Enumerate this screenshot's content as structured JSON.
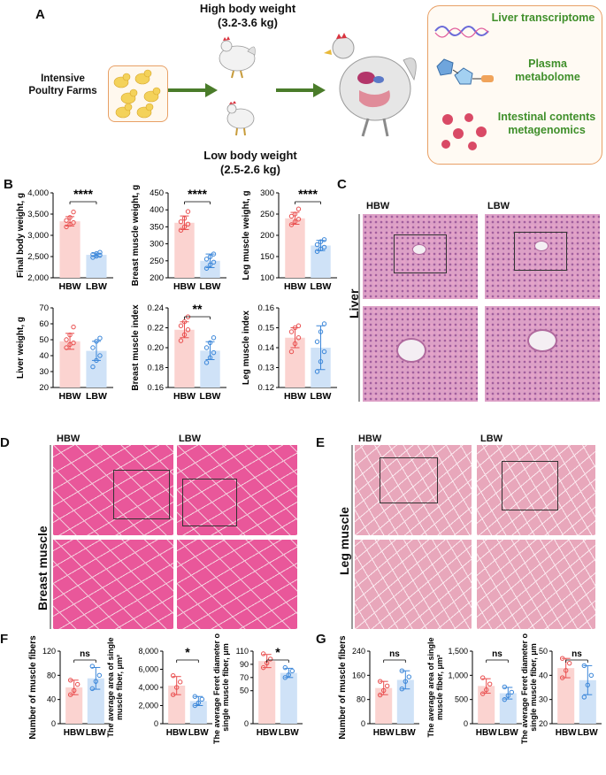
{
  "panel_labels": {
    "a": "A",
    "b": "B",
    "c": "C",
    "d": "D",
    "e": "E",
    "f": "F",
    "g": "G"
  },
  "panel_a": {
    "farm_label": "Intensive Poultry Farms",
    "high_title": "High body weight",
    "high_range": "(3.2-3.6 kg)",
    "low_title": "Low body weight",
    "low_range": "(2.5-2.6 kg)",
    "omics": [
      "Liver transcriptome",
      "Plasma metabolome",
      "Intestinal contents metagenomics"
    ],
    "colors": {
      "arrow": "#4a7c2a",
      "omics_text": "#3f8f2a",
      "box_border": "#e8a066"
    }
  },
  "groups": {
    "hbw": "HBW",
    "lbw": "LBW"
  },
  "histology": {
    "liver_label": "Liver",
    "breast_label": "Breast muscle",
    "leg_label": "Leg muscle"
  },
  "colors": {
    "hbw_fill": "#fbd3d0",
    "hbw_point": "#e94f4f",
    "lbw_fill": "#cfe2f7",
    "lbw_point": "#3a86d9"
  },
  "chart_data": [
    {
      "id": "final_bw",
      "type": "bar",
      "ylabel": "Final body weight, g",
      "ylim": [
        2000,
        4000
      ],
      "yticks": [
        "2,000",
        "2,500",
        "3,000",
        "3,500",
        "4,000"
      ],
      "tickvals": [
        2000,
        2500,
        3000,
        3500,
        4000
      ],
      "categories": [
        "HBW",
        "LBW"
      ],
      "values": [
        3330,
        2540
      ],
      "errors": [
        110,
        40
      ],
      "points": [
        [
          3200,
          3260,
          3300,
          3350,
          3420,
          3550
        ],
        [
          2480,
          2510,
          2530,
          2550,
          2570,
          2600
        ]
      ],
      "sig": "****"
    },
    {
      "id": "breast_w",
      "type": "bar",
      "ylabel": "Breast muscle weight, g",
      "ylim": [
        200,
        450
      ],
      "yticks": [
        "200",
        "250",
        "300",
        "350",
        "400",
        "450"
      ],
      "tickvals": [
        200,
        250,
        300,
        350,
        400,
        450
      ],
      "categories": [
        "HBW",
        "LBW"
      ],
      "values": [
        362,
        250
      ],
      "errors": [
        20,
        20
      ],
      "points": [
        [
          340,
          350,
          358,
          365,
          375,
          395
        ],
        [
          228,
          238,
          246,
          255,
          262,
          270
        ]
      ],
      "sig": "****"
    },
    {
      "id": "leg_w",
      "type": "bar",
      "ylabel": "Leg muscle weight, g",
      "ylim": [
        100,
        300
      ],
      "yticks": [
        "100",
        "150",
        "200",
        "250",
        "300"
      ],
      "tickvals": [
        100,
        150,
        200,
        250,
        300
      ],
      "categories": [
        "HBW",
        "LBW"
      ],
      "values": [
        240,
        176
      ],
      "errors": [
        14,
        12
      ],
      "points": [
        [
          225,
          232,
          238,
          245,
          250,
          262
        ],
        [
          162,
          168,
          172,
          178,
          185,
          190
        ]
      ],
      "sig": "****"
    },
    {
      "id": "liver_w",
      "type": "bar",
      "ylabel": "Liver weight, g",
      "ylim": [
        20,
        70
      ],
      "yticks": [
        "20",
        "30",
        "40",
        "50",
        "60",
        "70"
      ],
      "tickvals": [
        20,
        30,
        40,
        50,
        60,
        70
      ],
      "categories": [
        "HBW",
        "LBW"
      ],
      "values": [
        49,
        43
      ],
      "errors": [
        5,
        6
      ],
      "points": [
        [
          45,
          47,
          48,
          50,
          53,
          58
        ],
        [
          33,
          37,
          40,
          45,
          49,
          51
        ]
      ],
      "sig": ""
    },
    {
      "id": "breast_idx",
      "type": "bar",
      "ylabel": "Breast muscle index",
      "ylim": [
        0.16,
        0.24
      ],
      "yticks": [
        "0.16",
        "0.18",
        "0.20",
        "0.22",
        "0.24"
      ],
      "tickvals": [
        0.16,
        0.18,
        0.2,
        0.22,
        0.24
      ],
      "categories": [
        "HBW",
        "LBW"
      ],
      "values": [
        0.218,
        0.197
      ],
      "errors": [
        0.008,
        0.009
      ],
      "points": [
        [
          0.207,
          0.213,
          0.218,
          0.222,
          0.226,
          0.231
        ],
        [
          0.185,
          0.19,
          0.195,
          0.2,
          0.205,
          0.21
        ]
      ],
      "sig": "**"
    },
    {
      "id": "leg_idx",
      "type": "bar",
      "ylabel": "Leg muscle index",
      "ylim": [
        0.12,
        0.16
      ],
      "yticks": [
        "0.12",
        "0.13",
        "0.14",
        "0.15",
        "0.16"
      ],
      "tickvals": [
        0.12,
        0.13,
        0.14,
        0.15,
        0.16
      ],
      "categories": [
        "HBW",
        "LBW"
      ],
      "values": [
        0.145,
        0.14
      ],
      "errors": [
        0.005,
        0.011
      ],
      "points": [
        [
          0.138,
          0.142,
          0.145,
          0.148,
          0.15,
          0.151
        ],
        [
          0.128,
          0.133,
          0.138,
          0.143,
          0.148,
          0.152
        ]
      ],
      "sig": ""
    },
    {
      "id": "f_num",
      "type": "bar",
      "ylabel": "Number of muscle fibers",
      "ylim": [
        0,
        120
      ],
      "yticks": [
        "0",
        "40",
        "80",
        "120"
      ],
      "tickvals": [
        0,
        40,
        80,
        120
      ],
      "categories": [
        "HBW",
        "LBW"
      ],
      "values": [
        60,
        75
      ],
      "errors": [
        12,
        18
      ],
      "points": [
        [
          48,
          55,
          65,
          72
        ],
        [
          58,
          70,
          80,
          95
        ]
      ],
      "sig": "ns"
    },
    {
      "id": "f_area",
      "type": "bar",
      "ylabel": "The average area of single muscle fiber, μm²",
      "ylim": [
        0,
        8000
      ],
      "yticks": [
        "0",
        "2,000",
        "4,000",
        "6,000",
        "8,000"
      ],
      "tickvals": [
        0,
        2000,
        4000,
        6000,
        8000
      ],
      "categories": [
        "HBW",
        "LBW"
      ],
      "values": [
        4200,
        2500
      ],
      "errors": [
        1000,
        500
      ],
      "points": [
        [
          3200,
          4000,
          4600,
          5300
        ],
        [
          2000,
          2300,
          2700,
          3000
        ]
      ],
      "sig": "*"
    },
    {
      "id": "f_feret",
      "type": "bar",
      "ylabel": "The average Feret diameter of single muscle fiber, μm",
      "ylim": [
        0,
        110
      ],
      "yticks": [
        "0",
        "50",
        "70",
        "90",
        "110"
      ],
      "tickvals": [
        0,
        50,
        70,
        90,
        110
      ],
      "categories": [
        "HBW",
        "LBW"
      ],
      "values": [
        95,
        77
      ],
      "errors": [
        10,
        7
      ],
      "points": [
        [
          85,
          92,
          98,
          106
        ],
        [
          70,
          74,
          80,
          85
        ]
      ],
      "sig": "*"
    },
    {
      "id": "g_num",
      "type": "bar",
      "ylabel": "Number of muscle fibers",
      "ylim": [
        0,
        240
      ],
      "yticks": [
        "0",
        "80",
        "160",
        "240"
      ],
      "tickvals": [
        0,
        80,
        160,
        240
      ],
      "categories": [
        "HBW",
        "LBW"
      ],
      "values": [
        118,
        145
      ],
      "errors": [
        22,
        30
      ],
      "points": [
        [
          95,
          110,
          125,
          140
        ],
        [
          115,
          140,
          155,
          175
        ]
      ],
      "sig": "ns"
    },
    {
      "id": "g_area",
      "type": "bar",
      "ylabel": "The average area of single muscle fiber, μm²",
      "ylim": [
        0,
        1500
      ],
      "yticks": [
        "0",
        "500",
        "1,000",
        "1,500"
      ],
      "tickvals": [
        0,
        500,
        1000,
        1500
      ],
      "categories": [
        "HBW",
        "LBW"
      ],
      "values": [
        780,
        630
      ],
      "errors": [
        150,
        120
      ],
      "points": [
        [
          620,
          700,
          820,
          950
        ],
        [
          500,
          580,
          650,
          760
        ]
      ],
      "sig": "ns"
    },
    {
      "id": "g_feret",
      "type": "bar",
      "ylabel": "The average Feret diameter of single muscle fiber, μm",
      "ylim": [
        20,
        50
      ],
      "yticks": [
        "20",
        "30",
        "40",
        "50"
      ],
      "tickvals": [
        20,
        30,
        40,
        50
      ],
      "categories": [
        "HBW",
        "LBW"
      ],
      "values": [
        43,
        38
      ],
      "errors": [
        4,
        6
      ],
      "points": [
        [
          39,
          42,
          45,
          47
        ],
        [
          31,
          36,
          40,
          44
        ]
      ],
      "sig": "ns"
    }
  ]
}
